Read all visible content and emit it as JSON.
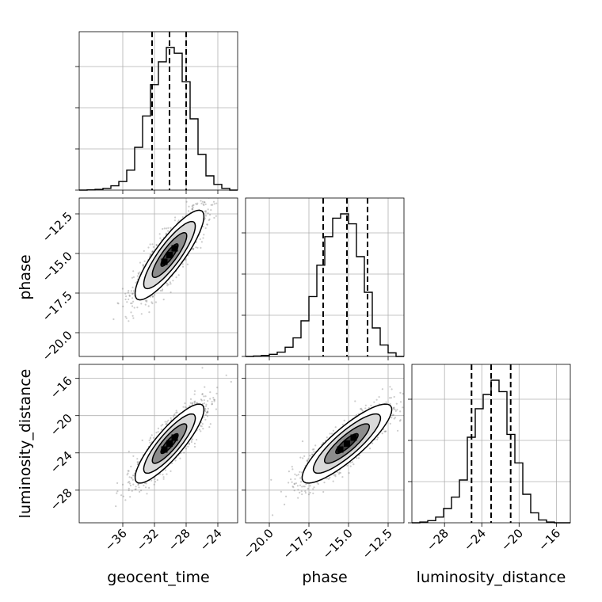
{
  "figure": {
    "parameters": [
      "geocent_time",
      "phase",
      "luminosity_distance"
    ]
  },
  "chart_data": {
    "type": "corner",
    "colors": {
      "line": "#000000",
      "scatter": "#6e6e6e",
      "grid": "#b0b0b0"
    },
    "grid": true,
    "parameters": [
      {
        "name": "geocent_time",
        "label": "geocent_time",
        "range": [
          -41.5,
          -21.5
        ],
        "ticks": [
          -36,
          -32,
          -28,
          -24
        ],
        "tick_labels": [
          "−36",
          "−32",
          "−28",
          "−24"
        ],
        "quantiles": [
          -32.3,
          -30.1,
          -28.0
        ],
        "hist_bins": [
          -41.5,
          -40.5,
          -39.5,
          -38.5,
          -37.5,
          -36.5,
          -35.5,
          -34.5,
          -33.5,
          -32.5,
          -31.5,
          -30.5,
          -29.5,
          -28.5,
          -27.5,
          -26.5,
          -25.5,
          -24.5,
          -23.5,
          -22.5,
          -21.5
        ],
        "hist_density": [
          0.0,
          0.002,
          0.005,
          0.012,
          0.03,
          0.06,
          0.14,
          0.3,
          0.52,
          0.74,
          0.9,
          1.0,
          0.96,
          0.76,
          0.5,
          0.25,
          0.1,
          0.04,
          0.012,
          0.0
        ]
      },
      {
        "name": "phase",
        "label": "phase",
        "range": [
          -21.5,
          -11.5
        ],
        "ticks": [
          -20.0,
          -17.5,
          -15.0,
          -12.5
        ],
        "tick_labels": [
          "−20.0",
          "−17.5",
          "−15.0",
          "−12.5"
        ],
        "quantiles": [
          -16.6,
          -15.1,
          -13.8
        ],
        "hist_bins": [
          -21.5,
          -21.0,
          -20.5,
          -20.0,
          -19.5,
          -19.0,
          -18.5,
          -18.0,
          -17.5,
          -17.0,
          -16.5,
          -16.0,
          -15.5,
          -15.0,
          -14.5,
          -14.0,
          -13.5,
          -13.0,
          -12.5,
          -12.0,
          -11.5
        ],
        "hist_density": [
          0.0,
          0.003,
          0.007,
          0.015,
          0.03,
          0.065,
          0.13,
          0.25,
          0.42,
          0.64,
          0.84,
          0.97,
          1.0,
          0.93,
          0.7,
          0.45,
          0.2,
          0.08,
          0.025,
          0.0
        ]
      },
      {
        "name": "luminosity_distance",
        "label": "luminosity_distance",
        "range": [
          -31.5,
          -14.5
        ],
        "ticks": [
          -28,
          -24,
          -20,
          -16
        ],
        "tick_labels": [
          "−28",
          "−24",
          "−20",
          "−16"
        ],
        "quantiles": [
          -25.1,
          -23.0,
          -20.9
        ],
        "hist_bins": [
          -31.5,
          -30.65,
          -29.8,
          -28.95,
          -28.1,
          -27.25,
          -26.4,
          -25.55,
          -24.7,
          -23.85,
          -23.0,
          -22.15,
          -21.3,
          -20.45,
          -19.6,
          -18.75,
          -17.9,
          -17.05,
          -16.2,
          -15.35,
          -14.5
        ],
        "hist_density": [
          0.0,
          0.005,
          0.015,
          0.04,
          0.1,
          0.18,
          0.3,
          0.6,
          0.8,
          0.9,
          1.0,
          0.92,
          0.62,
          0.42,
          0.2,
          0.07,
          0.02,
          0.005,
          0.0,
          0.0
        ]
      }
    ],
    "correlations": {
      "0-1": 0.86,
      "0-2": 0.86,
      "1-2": 0.86
    },
    "contour_levels_sigma": [
      0.5,
      1.0,
      1.5,
      2.0
    ]
  }
}
